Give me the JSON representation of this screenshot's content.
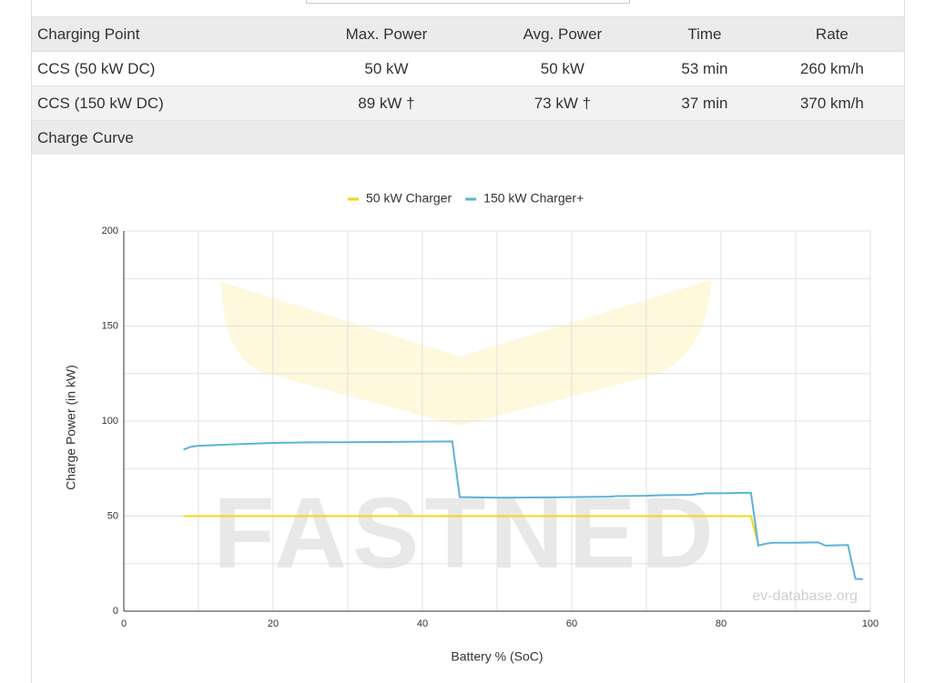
{
  "table": {
    "header": [
      "Charging Point",
      "Max. Power",
      "Avg. Power",
      "Time",
      "Rate"
    ],
    "rows": [
      [
        "CCS (50 kW DC)",
        "50 kW",
        "50 kW",
        "53 min",
        "260 km/h"
      ],
      [
        "CCS (150 kW DC)",
        "89 kW †",
        "73 kW †",
        "37 min",
        "370 km/h"
      ]
    ],
    "section_title": "Charge Curve"
  },
  "chart_data": {
    "type": "line",
    "xlabel": "Battery % (SoC)",
    "ylabel": "Charge Power (in kW)",
    "watermark": "FASTNED",
    "credit": "ev-database.org",
    "xlim": [
      0,
      100
    ],
    "xticks": [
      0,
      20,
      40,
      60,
      80,
      100
    ],
    "ylim": [
      0,
      200
    ],
    "yticks": [
      0,
      50,
      100,
      150,
      200
    ],
    "xgrid": [
      0,
      10,
      20,
      30,
      40,
      50,
      60,
      70,
      80,
      90,
      100
    ],
    "ygrid": [
      0,
      25,
      50,
      75,
      100,
      125,
      150,
      175,
      200
    ],
    "legend": "top",
    "series": [
      {
        "name": "50 kW Charger",
        "color": "#f5d714",
        "x": [
          8,
          84,
          85
        ],
        "values": [
          50,
          50,
          35
        ]
      },
      {
        "name": "150 kW Charger+",
        "color": "#5ab4d6",
        "x": [
          8,
          9,
          10,
          12,
          15,
          20,
          25,
          30,
          35,
          40,
          44,
          45,
          50,
          55,
          60,
          65,
          66,
          70,
          72,
          76,
          78,
          80,
          84,
          85,
          86,
          87,
          90,
          93,
          94,
          97,
          98,
          99
        ],
        "values": [
          85,
          86.5,
          87,
          87.3,
          87.8,
          88.5,
          88.8,
          88.9,
          89,
          89.2,
          89.3,
          60,
          59.7,
          59.8,
          60,
          60.2,
          60.5,
          60.7,
          61,
          61.2,
          62,
          62,
          62.3,
          34.5,
          35.5,
          36,
          36,
          36.2,
          34.5,
          34.8,
          17,
          16.8
        ]
      }
    ]
  }
}
